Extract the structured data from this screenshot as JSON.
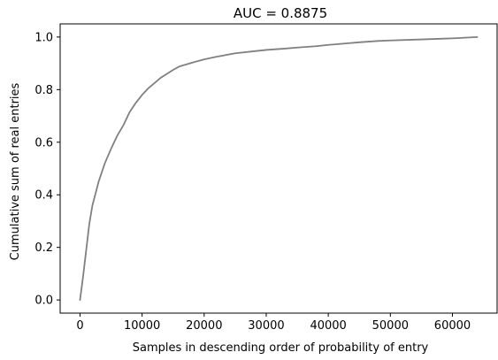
{
  "chart_data": {
    "type": "line",
    "title": "AUC = 0.8875",
    "xlabel": "Samples in descending order of probability of entry",
    "ylabel": "Cumulative sum of real entries",
    "xlim": [
      -3200,
      67200
    ],
    "ylim": [
      -0.05,
      1.05
    ],
    "xticks": [
      0,
      10000,
      20000,
      30000,
      40000,
      50000,
      60000
    ],
    "yticks": [
      0.0,
      0.2,
      0.4,
      0.6,
      0.8,
      1.0
    ],
    "xtick_labels": [
      "0",
      "10000",
      "20000",
      "30000",
      "40000",
      "50000",
      "60000"
    ],
    "ytick_labels": [
      "0.0",
      "0.2",
      "0.4",
      "0.6",
      "0.8",
      "1.0"
    ],
    "grid": false,
    "series": [
      {
        "color": "#808080",
        "x": [
          0,
          500,
          1000,
          1500,
          2000,
          3000,
          4000,
          5000,
          6000,
          7000,
          8000,
          9000,
          10000,
          11000,
          12000,
          13000,
          14000,
          15000,
          16000,
          18000,
          20000,
          22000,
          25000,
          28000,
          30000,
          33000,
          35000,
          38000,
          40000,
          43000,
          45000,
          48000,
          50000,
          55000,
          60000,
          64000
        ],
        "y": [
          0.0,
          0.09,
          0.19,
          0.29,
          0.36,
          0.45,
          0.52,
          0.575,
          0.625,
          0.665,
          0.715,
          0.75,
          0.78,
          0.805,
          0.825,
          0.845,
          0.86,
          0.875,
          0.888,
          0.902,
          0.915,
          0.925,
          0.938,
          0.946,
          0.951,
          0.956,
          0.96,
          0.965,
          0.97,
          0.976,
          0.98,
          0.985,
          0.987,
          0.991,
          0.995,
          1.0
        ]
      }
    ]
  }
}
